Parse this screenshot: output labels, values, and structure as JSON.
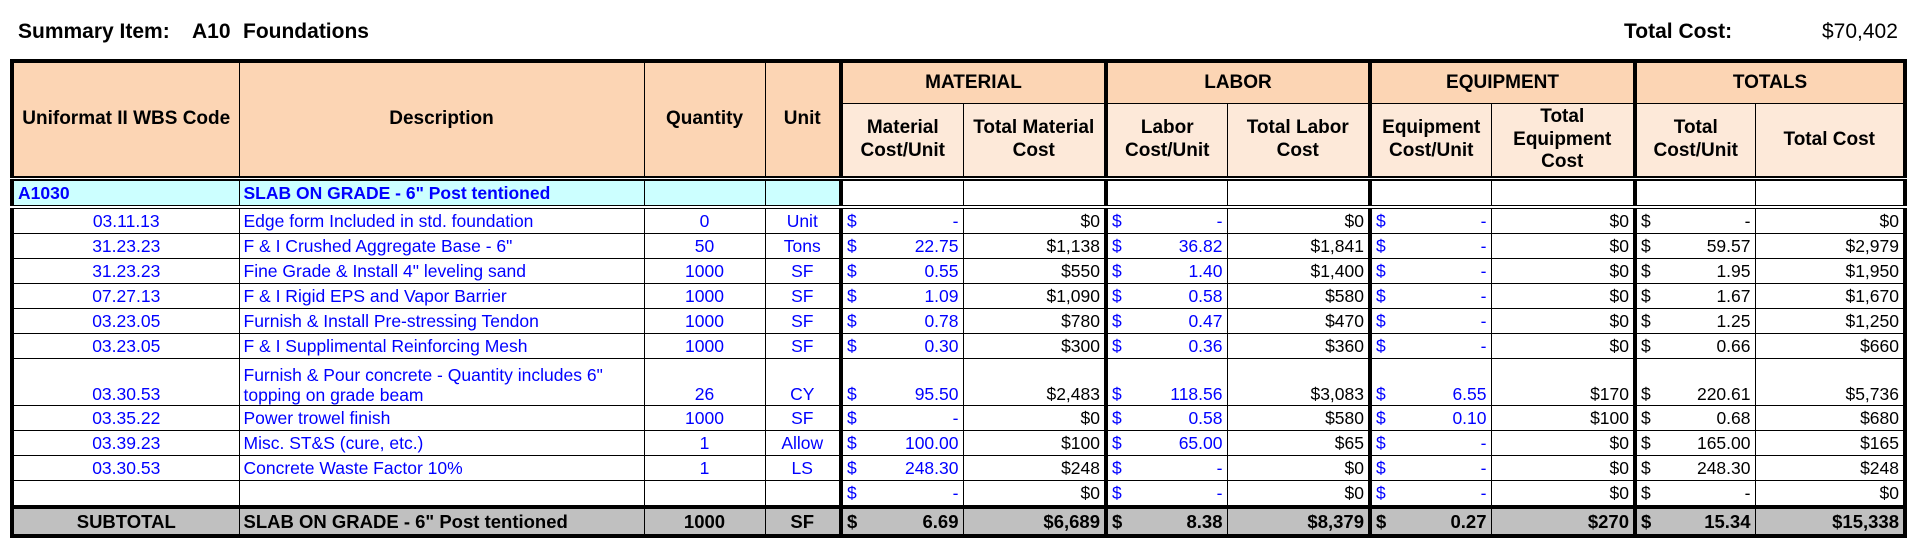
{
  "header": {
    "label": "Summary Item:",
    "code": "A10",
    "name": "Foundations",
    "total_label": "Total Cost:",
    "total": "$70,402"
  },
  "table": {
    "group_headers": [
      "MATERIAL",
      "LABOR",
      "EQUIPMENT",
      "TOTALS"
    ],
    "column_headers": [
      "Uniformat II WBS Code",
      "Description",
      "Quantity",
      "Unit",
      "Material Cost/Unit",
      "Total Material Cost",
      "Labor Cost/Unit",
      "Total Labor Cost",
      "Equipment Cost/Unit",
      "Total Equipment Cost",
      "Total Cost/Unit",
      "Total Cost"
    ],
    "section": {
      "code": "A1030",
      "description": "SLAB ON GRADE - 6\" Post tentioned"
    },
    "rows": [
      [
        "03.11.13",
        "Edge form Included in std. foundation",
        "0",
        "Unit",
        [
          "$",
          "-"
        ],
        "$0",
        [
          "$",
          "-"
        ],
        "$0",
        [
          "$",
          "-"
        ],
        "$0",
        [
          "$",
          "-"
        ],
        "$0"
      ],
      [
        "31.23.23",
        "F & I  Crushed Aggregate Base - 6\"",
        "50",
        "Tons",
        [
          "$",
          "22.75"
        ],
        "$1,138",
        [
          "$",
          "36.82"
        ],
        "$1,841",
        [
          "$",
          "-"
        ],
        "$0",
        [
          "$",
          "59.57"
        ],
        "$2,979"
      ],
      [
        "31.23.23",
        "Fine Grade & Install 4\" leveling sand",
        "1000",
        "SF",
        [
          "$",
          "0.55"
        ],
        "$550",
        [
          "$",
          "1.40"
        ],
        "$1,400",
        [
          "$",
          "-"
        ],
        "$0",
        [
          "$",
          "1.95"
        ],
        "$1,950"
      ],
      [
        "07.27.13",
        "F & I Rigid EPS and Vapor Barrier",
        "1000",
        "SF",
        [
          "$",
          "1.09"
        ],
        "$1,090",
        [
          "$",
          "0.58"
        ],
        "$580",
        [
          "$",
          "-"
        ],
        "$0",
        [
          "$",
          "1.67"
        ],
        "$1,670"
      ],
      [
        "03.23.05",
        "Furnish & Install Pre-stressing Tendon",
        "1000",
        "SF",
        [
          "$",
          "0.78"
        ],
        "$780",
        [
          "$",
          "0.47"
        ],
        "$470",
        [
          "$",
          "-"
        ],
        "$0",
        [
          "$",
          "1.25"
        ],
        "$1,250"
      ],
      [
        "03.23.05",
        "F & I Supplimental Reinforcing Mesh",
        "1000",
        "SF",
        [
          "$",
          "0.30"
        ],
        "$300",
        [
          "$",
          "0.36"
        ],
        "$360",
        [
          "$",
          "-"
        ],
        "$0",
        [
          "$",
          "0.66"
        ],
        "$660"
      ],
      [
        "03.30.53",
        "Furnish & Pour concrete - Quantity includes 6\" topping on grade beam",
        "26",
        "CY",
        [
          "$",
          "95.50"
        ],
        "$2,483",
        [
          "$",
          "118.56"
        ],
        "$3,083",
        [
          "$",
          "6.55"
        ],
        "$170",
        [
          "$",
          "220.61"
        ],
        "$5,736"
      ],
      [
        "03.35.22",
        "Power trowel finish",
        "1000",
        "SF",
        [
          "$",
          "-"
        ],
        "$0",
        [
          "$",
          "0.58"
        ],
        "$580",
        [
          "$",
          "0.10"
        ],
        "$100",
        [
          "$",
          "0.68"
        ],
        "$680"
      ],
      [
        "03.39.23",
        "Misc. ST&S (cure, etc.)",
        "1",
        "Allow",
        [
          "$",
          "100.00"
        ],
        "$100",
        [
          "$",
          "65.00"
        ],
        "$65",
        [
          "$",
          "-"
        ],
        "$0",
        [
          "$",
          "165.00"
        ],
        "$165"
      ],
      [
        "03.30.53",
        "Concrete Waste Factor 10%",
        "1",
        "LS",
        [
          "$",
          "248.30"
        ],
        "$248",
        [
          "$",
          "-"
        ],
        "$0",
        [
          "$",
          "-"
        ],
        "$0",
        [
          "$",
          "248.30"
        ],
        "$248"
      ],
      [
        null,
        null,
        null,
        null,
        [
          "$",
          "-"
        ],
        "$0",
        [
          "$",
          "-"
        ],
        "$0",
        [
          "$",
          "-"
        ],
        "$0",
        [
          "$",
          "-"
        ],
        "$0"
      ]
    ],
    "subtotal": [
      "SUBTOTAL",
      "SLAB ON GRADE - 6\" Post tentioned",
      "1000",
      "SF",
      [
        "$",
        "6.69"
      ],
      "$6,689",
      [
        "$",
        "8.38"
      ],
      "$8,379",
      [
        "$",
        "0.27"
      ],
      "$270",
      [
        "$",
        "15.34"
      ],
      "$15,338"
    ]
  }
}
